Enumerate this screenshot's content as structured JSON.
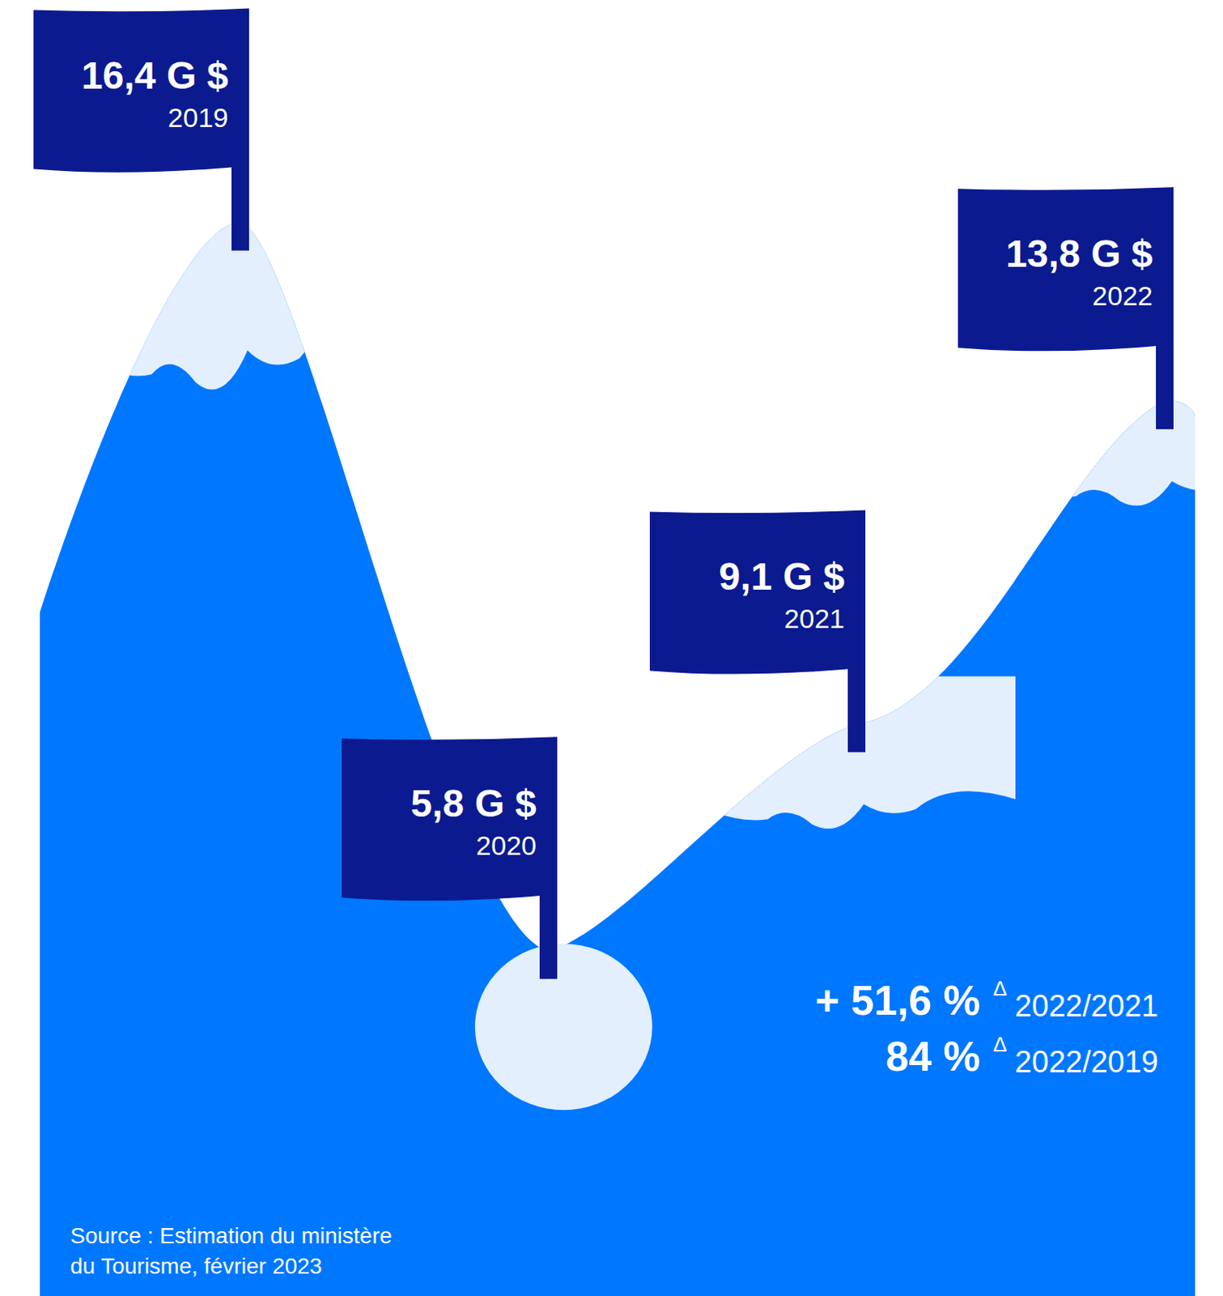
{
  "chart_data": {
    "type": "area",
    "categories": [
      "2019",
      "2020",
      "2021",
      "2022"
    ],
    "values": [
      16.4,
      5.8,
      9.1,
      13.8
    ],
    "value_labels": [
      "16,4 G $",
      "5,8 G $",
      "9,1 G $",
      "13,8 G $"
    ],
    "data_labels": true,
    "color": "#0077ff",
    "ylim": [
      1,
      18
    ],
    "annotations": [
      {
        "text": "+ 51,6 %",
        "symbol": "Δ",
        "period": "2022/2021"
      },
      {
        "text": "84 %",
        "symbol": "Δ",
        "period": "2022/2019"
      }
    ],
    "source": [
      "Source : Estimation du ministère",
      "du Tourisme, février 2023"
    ]
  }
}
